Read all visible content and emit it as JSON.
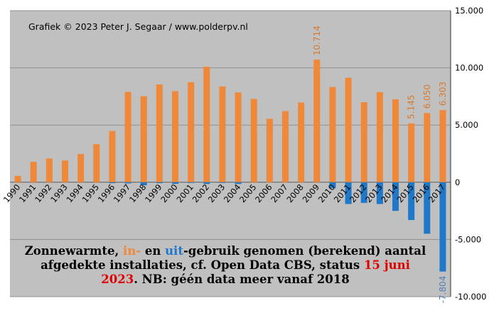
{
  "chart_data": {
    "type": "bar",
    "credit": "Grafiek  © 2023  Peter J. Segaar / www.polderpv.nl",
    "categories": [
      "1990",
      "1991",
      "1992",
      "1993",
      "1994",
      "1995",
      "1996",
      "1997",
      "1998",
      "1999",
      "2000",
      "2001",
      "2002",
      "2003",
      "2004",
      "2005",
      "2006",
      "2007",
      "2008",
      "2009",
      "2010",
      "2011",
      "2012",
      "2013",
      "2014",
      "2015",
      "2016",
      "2017"
    ],
    "series": [
      {
        "name": "in-gebruik",
        "color": "#f0883a",
        "values": [
          560,
          1790,
          2080,
          1900,
          2470,
          3330,
          4480,
          7900,
          7520,
          8550,
          7960,
          8750,
          10100,
          8370,
          7850,
          7280,
          5550,
          6220,
          6970,
          10714,
          8330,
          9140,
          7000,
          7880,
          7250,
          5145,
          6050,
          6303
        ]
      },
      {
        "name": "uit-gebruik",
        "color": "#1f78c8",
        "values": [
          0,
          0,
          0,
          0,
          0,
          0,
          -80,
          -100,
          -260,
          -80,
          -140,
          -50,
          -150,
          -60,
          -150,
          0,
          0,
          0,
          0,
          0,
          -520,
          -1900,
          -1800,
          -1900,
          -2500,
          -3300,
          -4500,
          -7804
        ]
      }
    ],
    "data_labels": [
      {
        "series": 0,
        "index": 19,
        "text": "10.714"
      },
      {
        "series": 0,
        "index": 25,
        "text": "5.145"
      },
      {
        "series": 0,
        "index": 26,
        "text": "6.050"
      },
      {
        "series": 0,
        "index": 27,
        "text": "6.303"
      },
      {
        "series": 1,
        "index": 27,
        "text": "-7.804"
      }
    ],
    "yticks": [
      15000,
      10000,
      5000,
      0,
      -5000,
      -10000
    ],
    "ytick_labels": [
      "15.000",
      "10.000",
      "5.000",
      "0",
      "-5.000",
      "-10.000"
    ],
    "ylim": [
      -10000,
      15000
    ],
    "grid": true,
    "y_axis_side": "right",
    "colors": {
      "plot_bg": "#c0c0c0",
      "grid": "#909090",
      "label_in": "#d77a30",
      "label_out": "#4f7fb8"
    }
  },
  "caption": {
    "line1_a": "Zonnewarmte, ",
    "line1_in": "in-",
    "line1_b": " en ",
    "line1_uit": "uit",
    "line1_c": "-gebruik  genomen (berekend) aantal",
    "line2_a": "afgedekte installaties,  cf. Open Data CBS, status ",
    "line2_date": "15 juni",
    "line3_year": "2023",
    "line3_b": ". NB: géén data meer vanaf 2018",
    "colors": {
      "in": "#f0883a",
      "uit": "#1f78c8",
      "date": "#e00000"
    }
  }
}
